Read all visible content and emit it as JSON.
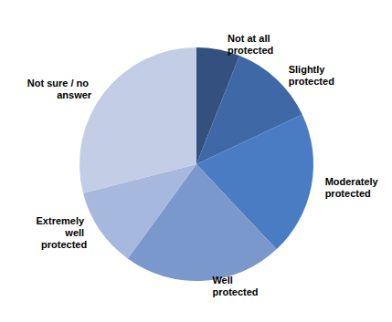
{
  "chart_data": {
    "type": "pie",
    "categories": [
      "Not at all protected",
      "Slightly protected",
      "Moderately protected",
      "Well protected",
      "Extremely well protected",
      "Not sure / no answer"
    ],
    "values": [
      6,
      12,
      20,
      22,
      11,
      29
    ],
    "colors": [
      "#34507f",
      "#3f68a6",
      "#4a7cc3",
      "#7b98cd",
      "#a7b8de",
      "#c3cde5"
    ]
  }
}
